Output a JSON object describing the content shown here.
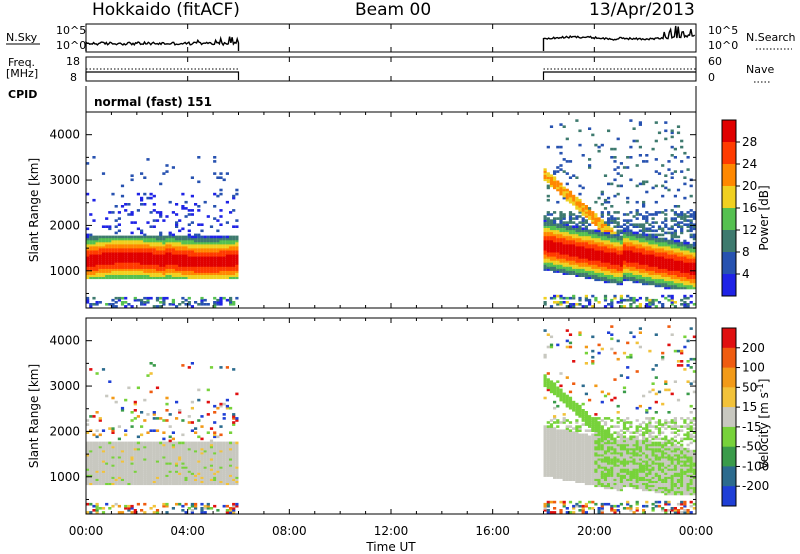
{
  "header": {
    "title": "Hokkaido (fitACF)",
    "beam": "Beam 00",
    "date": "13/Apr/2013"
  },
  "top_labels": {
    "nsky": "N.Sky",
    "freq": "Freq.",
    "mhz": "[MHz]",
    "cpid": "CPID",
    "nsearch": "N.Search",
    "nave": "Nave"
  },
  "mode_text": "normal (fast) 151",
  "colors": {
    "power_scale": [
      "#1f23e6",
      "#2752b0",
      "#3e7a6e",
      "#55c050",
      "#f0d020",
      "#ff8800",
      "#ff3b00",
      "#e00000"
    ],
    "velocity_scale": [
      "#1f3fd6",
      "#2c6b8e",
      "#3a9b4a",
      "#77d23a",
      "#c8c8c0",
      "#f2c23a",
      "#f29a18",
      "#ef5c10",
      "#e01010"
    ]
  },
  "chart_data": [
    {
      "type": "line",
      "name_ref": "nsky-panel",
      "y_left_ticks": [
        "10^5",
        "10^0"
      ],
      "y_right_ticks": [
        "10^5",
        "10^0"
      ],
      "x_range_hours": [
        0,
        24
      ],
      "segments": [
        [
          0,
          6
        ],
        [
          18,
          24
        ]
      ],
      "gap_hours": [
        6,
        18
      ]
    },
    {
      "type": "line",
      "name_ref": "freq-panel",
      "y_left_ticks": [
        "18",
        "8"
      ],
      "y_right_ticks": [
        "60",
        "0"
      ],
      "x_range_hours": [
        0,
        24
      ],
      "segments": [
        [
          0,
          6
        ],
        [
          18,
          24
        ]
      ]
    },
    {
      "type": "heatmap",
      "name_ref": "power-panel",
      "xlabel": "",
      "ylabel": "Slant Range [km]",
      "ylim": [
        180,
        4500
      ],
      "y_ticks": [
        "1000",
        "2000",
        "3000",
        "4000"
      ],
      "colorbar_label": "Power [dB]",
      "colorbar_ticks": [
        "28",
        "24",
        "20",
        "16",
        "12",
        "8",
        "4"
      ],
      "data_hours": [
        [
          0,
          6
        ],
        [
          18,
          24
        ]
      ]
    },
    {
      "type": "heatmap",
      "name_ref": "velocity-panel",
      "xlabel": "Time UT",
      "ylabel": "Slant Range [km]",
      "ylim": [
        180,
        4500
      ],
      "y_ticks": [
        "1000",
        "2000",
        "3000",
        "4000"
      ],
      "x_ticks": [
        "00:00",
        "04:00",
        "08:00",
        "12:00",
        "16:00",
        "20:00",
        "00:00"
      ],
      "colorbar_label": "Velocity [m s",
      "colorbar_unit_sup": "-1",
      "colorbar_unit_end": "]",
      "colorbar_ticks": [
        "200",
        "100",
        "50",
        "15",
        "-15",
        "-50",
        "-100",
        "-200"
      ],
      "data_hours": [
        [
          0,
          6
        ],
        [
          18,
          24
        ]
      ]
    }
  ]
}
